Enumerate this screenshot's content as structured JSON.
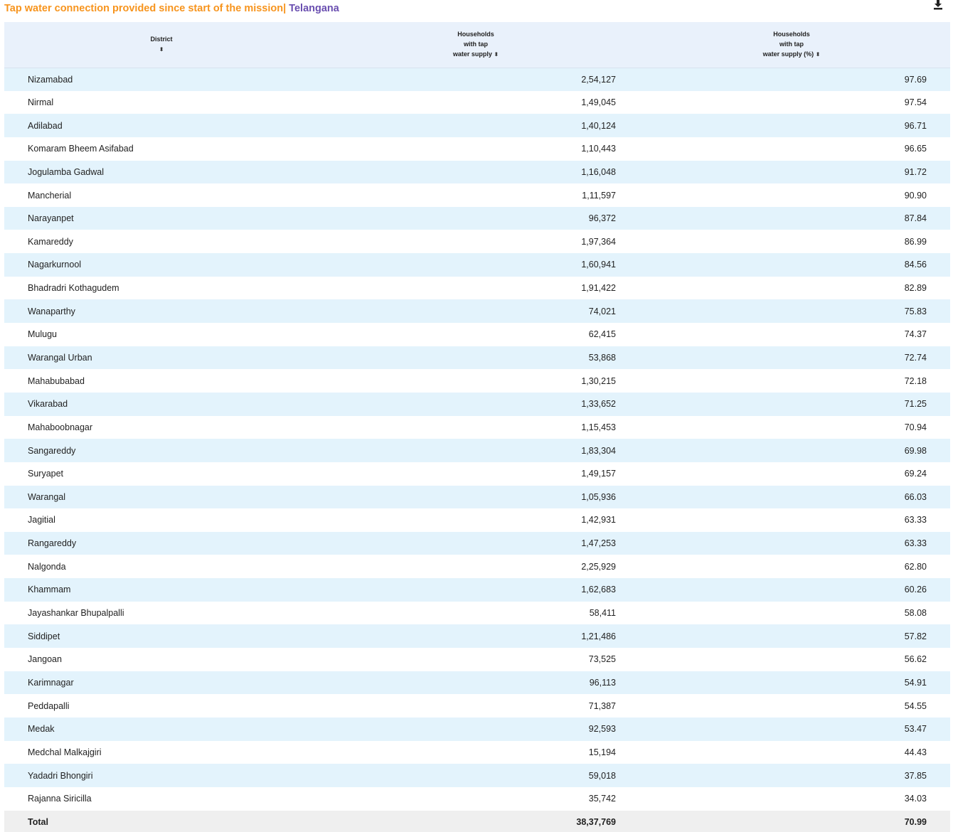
{
  "header": {
    "title": "Tap water connection provided since start of the mission|",
    "state": "Telangana",
    "download_icon": "download-icon"
  },
  "table": {
    "columns": [
      {
        "line1": "District",
        "line2": "",
        "line3": "",
        "sort_icon": "sort-icon"
      },
      {
        "line1": "Households",
        "line2": "with tap",
        "line3": "water supply",
        "sort_icon": "sort-icon"
      },
      {
        "line1": "Households",
        "line2": "with tap",
        "line3": "water supply (%)",
        "sort_icon": "sort-icon"
      }
    ],
    "rows": [
      {
        "district": "Nizamabad",
        "households": "2,54,127",
        "percent": "97.69"
      },
      {
        "district": "Nirmal",
        "households": "1,49,045",
        "percent": "97.54"
      },
      {
        "district": "Adilabad",
        "households": "1,40,124",
        "percent": "96.71"
      },
      {
        "district": "Komaram Bheem Asifabad",
        "households": "1,10,443",
        "percent": "96.65"
      },
      {
        "district": "Jogulamba Gadwal",
        "households": "1,16,048",
        "percent": "91.72"
      },
      {
        "district": "Mancherial",
        "households": "1,11,597",
        "percent": "90.90"
      },
      {
        "district": "Narayanpet",
        "households": "96,372",
        "percent": "87.84"
      },
      {
        "district": "Kamareddy",
        "households": "1,97,364",
        "percent": "86.99"
      },
      {
        "district": "Nagarkurnool",
        "households": "1,60,941",
        "percent": "84.56"
      },
      {
        "district": "Bhadradri Kothagudem",
        "households": "1,91,422",
        "percent": "82.89"
      },
      {
        "district": "Wanaparthy",
        "households": "74,021",
        "percent": "75.83"
      },
      {
        "district": "Mulugu",
        "households": "62,415",
        "percent": "74.37"
      },
      {
        "district": "Warangal Urban",
        "households": "53,868",
        "percent": "72.74"
      },
      {
        "district": "Mahabubabad",
        "households": "1,30,215",
        "percent": "72.18"
      },
      {
        "district": "Vikarabad",
        "households": "1,33,652",
        "percent": "71.25"
      },
      {
        "district": "Mahaboobnagar",
        "households": "1,15,453",
        "percent": "70.94"
      },
      {
        "district": "Sangareddy",
        "households": "1,83,304",
        "percent": "69.98"
      },
      {
        "district": "Suryapet",
        "households": "1,49,157",
        "percent": "69.24"
      },
      {
        "district": "Warangal",
        "households": "1,05,936",
        "percent": "66.03"
      },
      {
        "district": "Jagitial",
        "households": "1,42,931",
        "percent": "63.33"
      },
      {
        "district": "Rangareddy",
        "households": "1,47,253",
        "percent": "63.33"
      },
      {
        "district": "Nalgonda",
        "households": "2,25,929",
        "percent": "62.80"
      },
      {
        "district": "Khammam",
        "households": "1,62,683",
        "percent": "60.26"
      },
      {
        "district": "Jayashankar Bhupalpalli",
        "households": "58,411",
        "percent": "58.08"
      },
      {
        "district": "Siddipet",
        "households": "1,21,486",
        "percent": "57.82"
      },
      {
        "district": "Jangoan",
        "households": "73,525",
        "percent": "56.62"
      },
      {
        "district": "Karimnagar",
        "households": "96,113",
        "percent": "54.91"
      },
      {
        "district": "Peddapalli",
        "households": "71,387",
        "percent": "54.55"
      },
      {
        "district": "Medak",
        "households": "92,593",
        "percent": "53.47"
      },
      {
        "district": "Medchal Malkajgiri",
        "households": "15,194",
        "percent": "44.43"
      },
      {
        "district": "Yadadri Bhongiri",
        "households": "59,018",
        "percent": "37.85"
      },
      {
        "district": "Rajanna Siricilla",
        "households": "35,742",
        "percent": "34.03"
      }
    ],
    "total": {
      "label": "Total",
      "households": "38,37,769",
      "percent": "70.99"
    }
  },
  "colors": {
    "title": "#f7941d",
    "state": "#6a4fb0",
    "header_bg": "#e9f1fb",
    "row_stripe": "#e3f3fc",
    "total_bg": "#efefef"
  }
}
